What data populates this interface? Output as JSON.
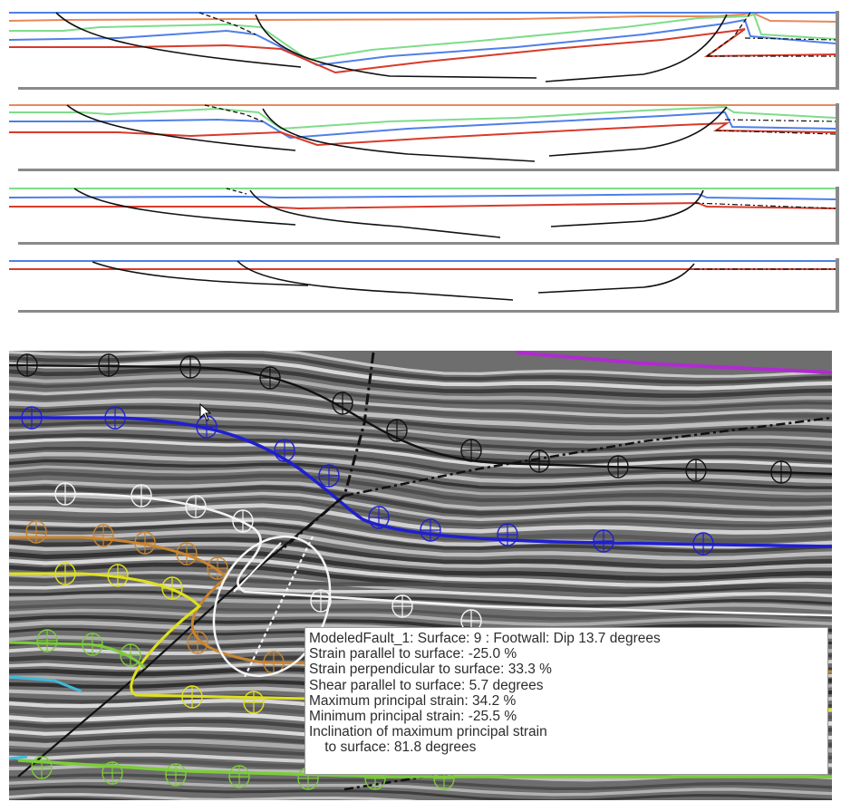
{
  "tooltip": {
    "header": "ModeledFault_1:  Surface: 9 : Footwall: Dip 13.7 degrees",
    "lines": [
      "Strain parallel to surface:  -25.0 %",
      "Strain perpendicular to surface: 33.3 %",
      "Shear parallel to surface: 5.7 degrees",
      "Maximum principal strain: 34.2 %",
      "Minimum principal strain: -25.5 %",
      "Inclination of maximum principal strain",
      "    to surface: 81.8 degrees"
    ]
  },
  "colors": {
    "horizon_orange": "#e8895a",
    "horizon_green": "#7fdc8a",
    "horizon_blue": "#4f7fe8",
    "horizon_red": "#d83a2a",
    "fault_black": "#111111",
    "seismic_black": "#111111",
    "seismic_blue": "#1f1fd0",
    "seismic_white": "#f4f4f4",
    "seismic_orange": "#c98530",
    "seismic_yellow": "#e0e020",
    "seismic_green": "#7ccc3a",
    "seismic_magenta": "#b02bd0",
    "seismic_cyan": "#40b8d8"
  },
  "icons": {
    "cursor": "arrow-pointer-icon",
    "horizon_marker": "circle-cross-marker-icon"
  }
}
